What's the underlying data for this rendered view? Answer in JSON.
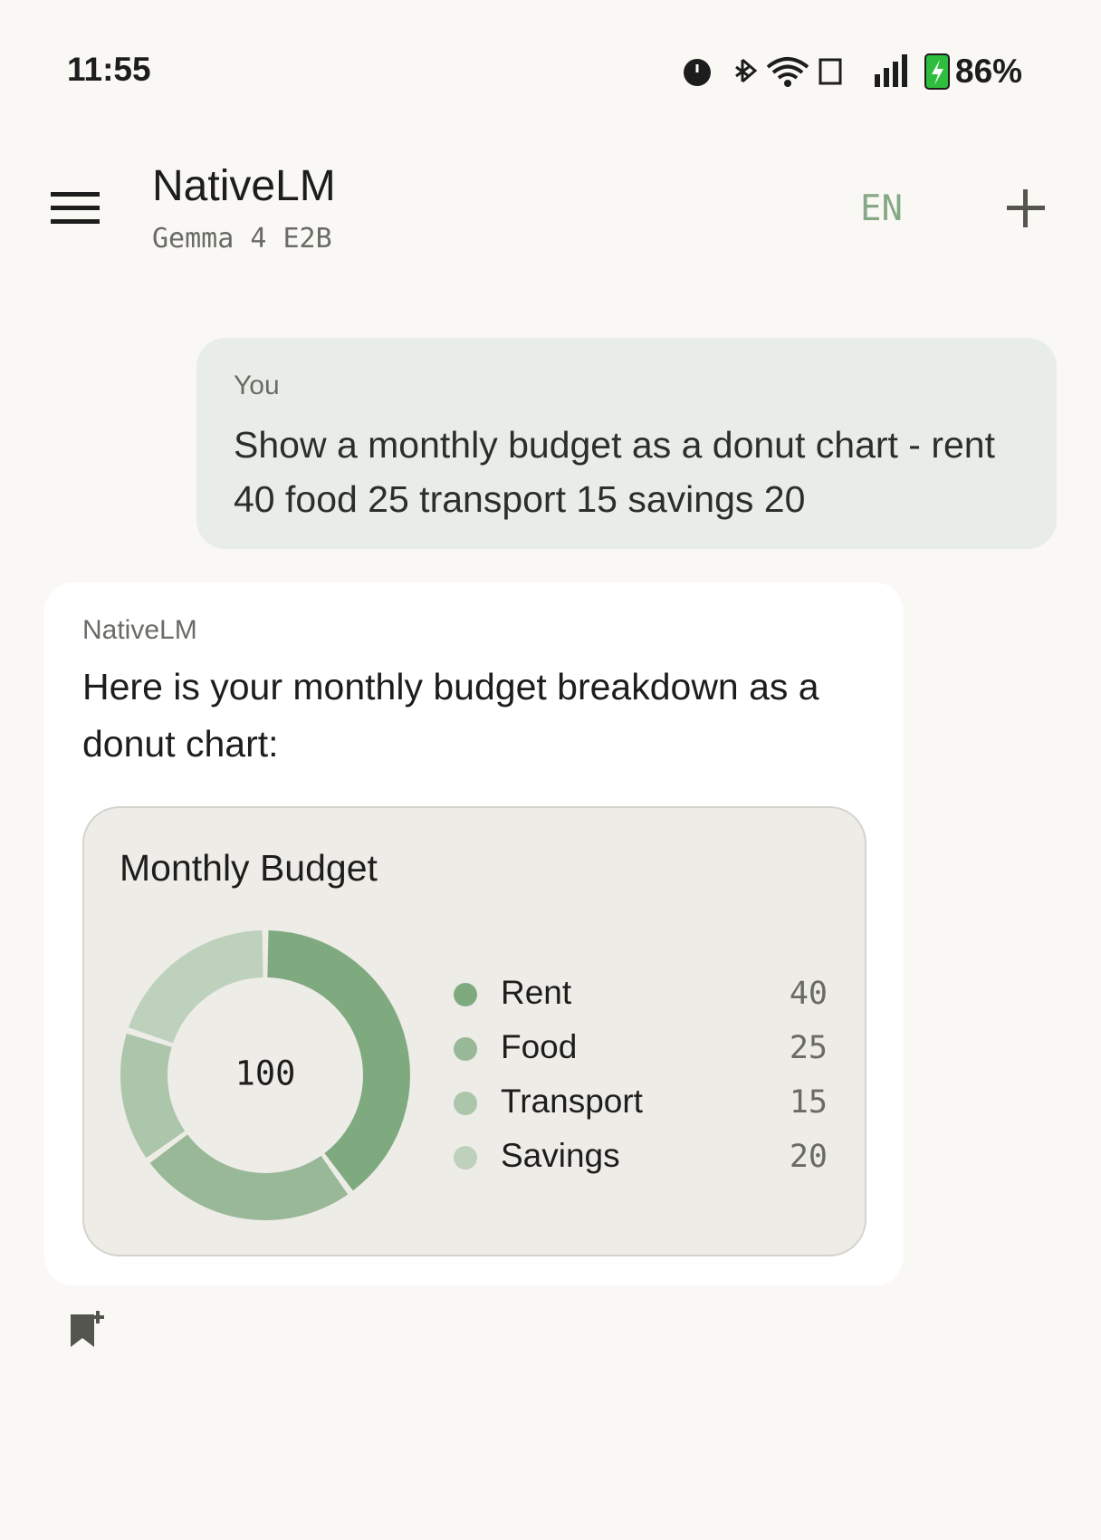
{
  "status_bar": {
    "time": "11:55",
    "battery": "86%"
  },
  "header": {
    "title": "NativeLM",
    "subtitle": "Gemma 4 E2B",
    "language": "EN"
  },
  "messages": [
    {
      "sender": "You",
      "text": "Show a monthly budget as a donut chart - rent 40 food 25 transport 15 savings 20"
    },
    {
      "sender": "NativeLM",
      "text": "Here is your monthly budget breakdown as a donut chart:"
    }
  ],
  "chart_data": {
    "type": "donut",
    "title": "Monthly Budget",
    "center_label": 100,
    "categories": [
      "Rent",
      "Food",
      "Transport",
      "Savings"
    ],
    "values": [
      40,
      25,
      15,
      20
    ],
    "colors": [
      "#7faa80",
      "#98b898",
      "#abc6aa",
      "#bdd1bc"
    ]
  }
}
